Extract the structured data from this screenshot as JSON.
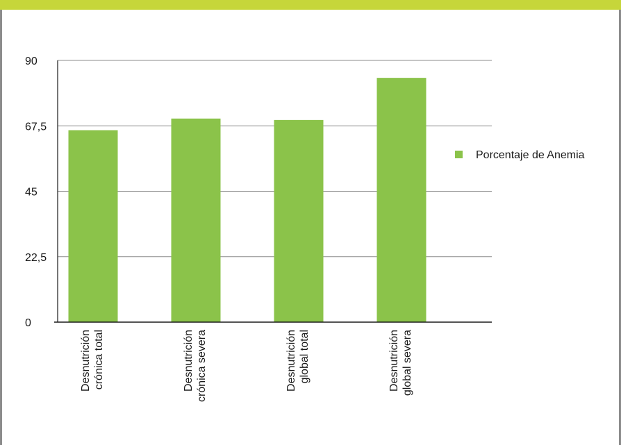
{
  "colors": {
    "header": "#c6d63a",
    "bar": "#8bc34a",
    "frame": "#8c8c8c",
    "grid": "#8c8c8c",
    "axis": "#1a1a1a"
  },
  "chart_data": {
    "type": "bar",
    "categories": [
      [
        "Desnutrición",
        "crónica total"
      ],
      [
        "Desnutrición",
        "crónica severa"
      ],
      [
        "Desnutrición",
        "global total"
      ],
      [
        "Desnutrición",
        "global severa"
      ]
    ],
    "series": [
      {
        "name": "Porcentaje de Anemia",
        "values": [
          66,
          70,
          69.5,
          84
        ]
      }
    ],
    "ylim": [
      0,
      90
    ],
    "yticks": [
      "0",
      "22,5",
      "45",
      "67,5",
      "90"
    ],
    "ytick_values": [
      0,
      22.5,
      45,
      67.5,
      90
    ],
    "grid": true,
    "legend_position": "right"
  }
}
